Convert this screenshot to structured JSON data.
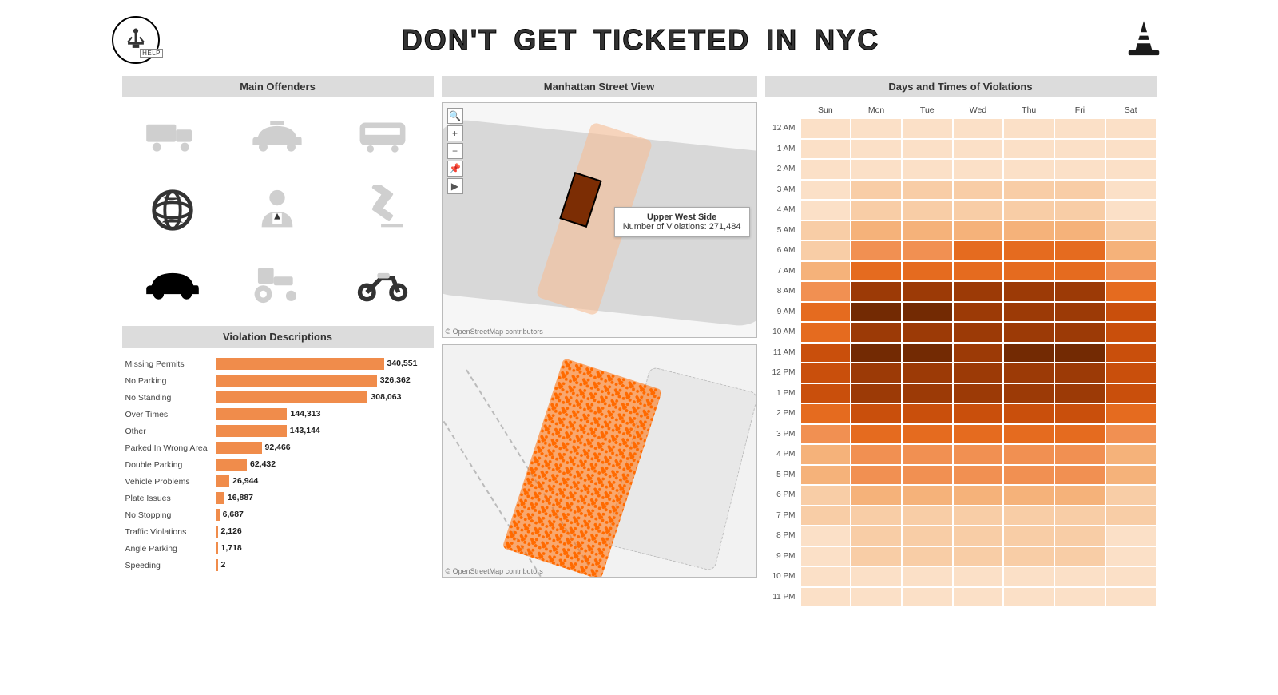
{
  "header": {
    "title": "DON'T GET TICKETED IN NYC",
    "help_label": "HELP"
  },
  "panels": {
    "offenders_title": "Main Offenders",
    "violations_title": "Violation Descriptions",
    "map_title": "Manhattan Street View",
    "heatmap_title": "Days and Times of Violations"
  },
  "offenders": {
    "icons": [
      "truck",
      "taxi",
      "bus",
      "globe",
      "official",
      "gavel",
      "car",
      "tractor",
      "motorcycle"
    ],
    "selected_index": 6
  },
  "violations_chart": {
    "type": "bar",
    "bar_color": "#f08c4b",
    "max_value": 340551,
    "label_fontsize": 10.5,
    "value_fontsize": 10.5,
    "rows": [
      {
        "label": "Missing Permits",
        "value": 340551,
        "value_text": "340,551"
      },
      {
        "label": "No Parking",
        "value": 326362,
        "value_text": "326,362"
      },
      {
        "label": "No Standing",
        "value": 308063,
        "value_text": "308,063"
      },
      {
        "label": "Over Times",
        "value": 144313,
        "value_text": "144,313"
      },
      {
        "label": "Other",
        "value": 143144,
        "value_text": "143,144"
      },
      {
        "label": "Parked In Wrong Area",
        "value": 92466,
        "value_text": "92,466"
      },
      {
        "label": "Double Parking",
        "value": 62432,
        "value_text": "62,432"
      },
      {
        "label": "Vehicle Problems",
        "value": 26944,
        "value_text": "26,944"
      },
      {
        "label": "Plate Issues",
        "value": 16887,
        "value_text": "16,887"
      },
      {
        "label": "No Stopping",
        "value": 6687,
        "value_text": "6,687"
      },
      {
        "label": "Traffic Violations",
        "value": 2126,
        "value_text": "2,126"
      },
      {
        "label": "Angle Parking",
        "value": 1718,
        "value_text": "1,718"
      },
      {
        "label": "Speeding",
        "value": 2,
        "value_text": "2"
      }
    ]
  },
  "map": {
    "credit": "© OpenStreetMap contributors",
    "tooltip_title": "Upper West Side",
    "tooltip_line2": "Number of Violations: 271,484"
  },
  "heatmap": {
    "type": "heatmap",
    "days": [
      "Sun",
      "Mon",
      "Tue",
      "Wed",
      "Thu",
      "Fri",
      "Sat"
    ],
    "hours": [
      "12 AM",
      "1 AM",
      "2 AM",
      "3 AM",
      "4 AM",
      "5 AM",
      "6 AM",
      "7 AM",
      "8 AM",
      "9 AM",
      "10 AM",
      "11 AM",
      "12 PM",
      "1 PM",
      "2 PM",
      "3 PM",
      "4 PM",
      "5 PM",
      "6 PM",
      "7 PM",
      "8 PM",
      "9 PM",
      "10 PM",
      "11 PM"
    ],
    "color_scale": [
      "#fbe0c7",
      "#f8cda6",
      "#f5b27a",
      "#f19052",
      "#e56b1f",
      "#c94f0c",
      "#9c3a06",
      "#732a03"
    ],
    "grid_color": "#ffffff",
    "values": [
      [
        0,
        0,
        0,
        0,
        0,
        0,
        0
      ],
      [
        0,
        0,
        0,
        0,
        0,
        0,
        0
      ],
      [
        0,
        0,
        0,
        0,
        0,
        0,
        0
      ],
      [
        0,
        1,
        1,
        1,
        1,
        1,
        0
      ],
      [
        0,
        1,
        1,
        1,
        1,
        1,
        0
      ],
      [
        1,
        2,
        2,
        2,
        2,
        2,
        1
      ],
      [
        1,
        3,
        3,
        4,
        4,
        4,
        2
      ],
      [
        2,
        4,
        4,
        4,
        4,
        4,
        3
      ],
      [
        3,
        6,
        6,
        6,
        6,
        6,
        4
      ],
      [
        4,
        7,
        7,
        6,
        6,
        6,
        5
      ],
      [
        4,
        6,
        6,
        6,
        6,
        6,
        5
      ],
      [
        5,
        7,
        7,
        6,
        7,
        7,
        5
      ],
      [
        5,
        6,
        6,
        6,
        6,
        6,
        5
      ],
      [
        5,
        6,
        6,
        6,
        6,
        6,
        5
      ],
      [
        4,
        5,
        5,
        5,
        5,
        5,
        4
      ],
      [
        3,
        4,
        4,
        4,
        4,
        4,
        3
      ],
      [
        2,
        3,
        3,
        3,
        3,
        3,
        2
      ],
      [
        2,
        3,
        3,
        3,
        3,
        3,
        2
      ],
      [
        1,
        2,
        2,
        2,
        2,
        2,
        1
      ],
      [
        1,
        1,
        1,
        1,
        1,
        1,
        1
      ],
      [
        0,
        1,
        1,
        1,
        1,
        1,
        0
      ],
      [
        0,
        1,
        1,
        1,
        1,
        1,
        0
      ],
      [
        0,
        0,
        0,
        0,
        0,
        0,
        0
      ],
      [
        0,
        0,
        0,
        0,
        0,
        0,
        0
      ]
    ]
  }
}
